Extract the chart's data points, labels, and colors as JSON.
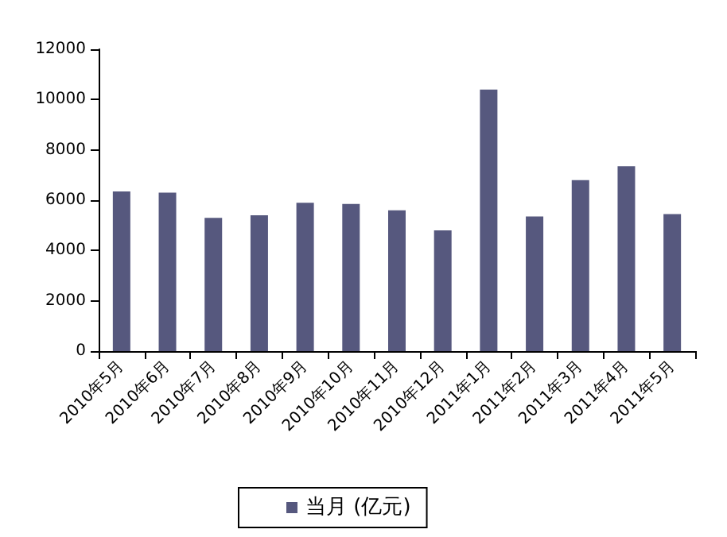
{
  "chart_data": {
    "type": "bar",
    "categories": [
      "2010年5月",
      "2010年6月",
      "2010年7月",
      "2010年8月",
      "2010年9月",
      "2010年10月",
      "2010年11月",
      "2010年12月",
      "2011年1月",
      "2011年2月",
      "2011年3月",
      "2011年4月",
      "2011年5月"
    ],
    "series": [
      {
        "name": "当月 (亿元)",
        "color": "#56587e",
        "values": [
          6350,
          6300,
          5300,
          5400,
          5900,
          5850,
          5600,
          4800,
          10400,
          5350,
          6800,
          7350,
          5450
        ]
      }
    ],
    "ylim": [
      0,
      12000
    ],
    "yticks": [
      0,
      2000,
      4000,
      6000,
      8000,
      10000,
      12000
    ],
    "grid": false,
    "legend": "bottom"
  }
}
